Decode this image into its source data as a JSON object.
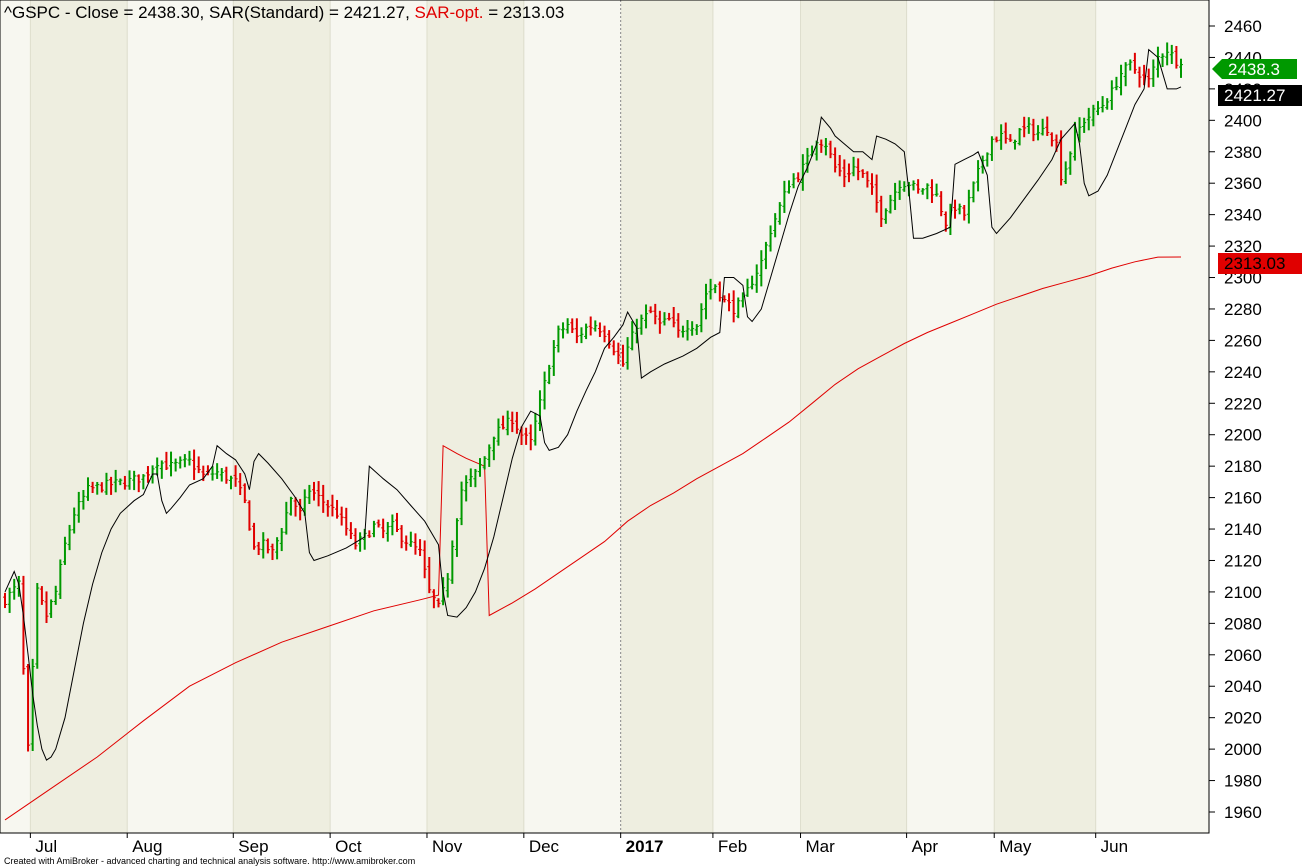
{
  "title": {
    "symbol_part": "^GSPC - Close = 2438.30, SAR(Standard) = 2421.27, ",
    "sar_opt_label": "SAR-opt.",
    "sar_opt_value": " = 2313.03"
  },
  "footer": "Created with AmiBroker - advanced charting and technical analysis software. http://www.amibroker.com",
  "colors": {
    "up": "#009900",
    "down": "#e00000",
    "sar_standard": "#000000",
    "sar_opt": "#e00000",
    "band_light": "#f7f7f0",
    "band_dark": "#eeeee0"
  },
  "chart_data": {
    "type": "line",
    "ylim": [
      1945,
      2475
    ],
    "yticks": [
      1960,
      1980,
      2000,
      2020,
      2040,
      2060,
      2080,
      2100,
      2120,
      2140,
      2160,
      2180,
      2200,
      2220,
      2240,
      2260,
      2280,
      2300,
      2320,
      2340,
      2360,
      2380,
      2400,
      2420,
      2440,
      2460
    ],
    "months": [
      {
        "label": "Jul",
        "start": 6
      },
      {
        "label": "Aug",
        "start": 27
      },
      {
        "label": "Sep",
        "start": 50
      },
      {
        "label": "Oct",
        "start": 71
      },
      {
        "label": "Nov",
        "start": 92
      },
      {
        "label": "Dec",
        "start": 113
      },
      {
        "label": "2017",
        "start": 134,
        "year": true
      },
      {
        "label": "Feb",
        "start": 154
      },
      {
        "label": "Mar",
        "start": 173
      },
      {
        "label": "Apr",
        "start": 196
      },
      {
        "label": "May",
        "start": 215
      },
      {
        "label": "Jun",
        "start": 237
      }
    ],
    "bar_count": 256,
    "close_anchors": [
      [
        0,
        2095
      ],
      [
        3,
        2105
      ],
      [
        4,
        2050
      ],
      [
        5,
        2000
      ],
      [
        6,
        2050
      ],
      [
        7,
        2100
      ],
      [
        9,
        2085
      ],
      [
        11,
        2100
      ],
      [
        13,
        2130
      ],
      [
        15,
        2150
      ],
      [
        18,
        2165
      ],
      [
        22,
        2168
      ],
      [
        26,
        2170
      ],
      [
        30,
        2173
      ],
      [
        33,
        2183
      ],
      [
        36,
        2180
      ],
      [
        40,
        2183
      ],
      [
        43,
        2174
      ],
      [
        46,
        2176
      ],
      [
        50,
        2170
      ],
      [
        52,
        2157
      ],
      [
        54,
        2128
      ],
      [
        56,
        2130
      ],
      [
        58,
        2125
      ],
      [
        60,
        2140
      ],
      [
        62,
        2160
      ],
      [
        64,
        2150
      ],
      [
        66,
        2165
      ],
      [
        68,
        2160
      ],
      [
        70,
        2155
      ],
      [
        72,
        2150
      ],
      [
        74,
        2140
      ],
      [
        76,
        2130
      ],
      [
        78,
        2135
      ],
      [
        80,
        2142
      ],
      [
        82,
        2138
      ],
      [
        84,
        2142
      ],
      [
        86,
        2135
      ],
      [
        88,
        2130
      ],
      [
        90,
        2125
      ],
      [
        92,
        2100
      ],
      [
        94,
        2090
      ],
      [
        96,
        2110
      ],
      [
        97,
        2131
      ],
      [
        99,
        2165
      ],
      [
        102,
        2175
      ],
      [
        104,
        2185
      ],
      [
        106,
        2200
      ],
      [
        108,
        2205
      ],
      [
        110,
        2210
      ],
      [
        112,
        2200
      ],
      [
        114,
        2195
      ],
      [
        116,
        2220
      ],
      [
        118,
        2245
      ],
      [
        120,
        2265
      ],
      [
        122,
        2270
      ],
      [
        124,
        2262
      ],
      [
        126,
        2268
      ],
      [
        128,
        2270
      ],
      [
        130,
        2265
      ],
      [
        132,
        2255
      ],
      [
        134,
        2245
      ],
      [
        135,
        2255
      ],
      [
        137,
        2270
      ],
      [
        140,
        2278
      ],
      [
        142,
        2270
      ],
      [
        144,
        2273
      ],
      [
        146,
        2265
      ],
      [
        148,
        2270
      ],
      [
        150,
        2270
      ],
      [
        152,
        2290
      ],
      [
        154,
        2295
      ],
      [
        156,
        2285
      ],
      [
        158,
        2280
      ],
      [
        160,
        2285
      ],
      [
        162,
        2298
      ],
      [
        164,
        2310
      ],
      [
        166,
        2330
      ],
      [
        168,
        2345
      ],
      [
        170,
        2360
      ],
      [
        172,
        2365
      ],
      [
        174,
        2375
      ],
      [
        176,
        2388
      ],
      [
        178,
        2385
      ],
      [
        180,
        2370
      ],
      [
        182,
        2365
      ],
      [
        184,
        2370
      ],
      [
        186,
        2365
      ],
      [
        188,
        2355
      ],
      [
        190,
        2340
      ],
      [
        192,
        2350
      ],
      [
        194,
        2360
      ],
      [
        196,
        2360
      ],
      [
        198,
        2355
      ],
      [
        200,
        2358
      ],
      [
        202,
        2352
      ],
      [
        204,
        2335
      ],
      [
        206,
        2345
      ],
      [
        208,
        2340
      ],
      [
        210,
        2358
      ],
      [
        212,
        2375
      ],
      [
        214,
        2388
      ],
      [
        216,
        2390
      ],
      [
        218,
        2385
      ],
      [
        220,
        2393
      ],
      [
        222,
        2395
      ],
      [
        224,
        2392
      ],
      [
        226,
        2395
      ],
      [
        228,
        2385
      ],
      [
        229,
        2365
      ],
      [
        230,
        2370
      ],
      [
        232,
        2390
      ],
      [
        234,
        2400
      ],
      [
        236,
        2405
      ],
      [
        238,
        2410
      ],
      [
        240,
        2418
      ],
      [
        242,
        2430
      ],
      [
        244,
        2435
      ],
      [
        246,
        2430
      ],
      [
        248,
        2425
      ],
      [
        250,
        2440
      ],
      [
        252,
        2445
      ],
      [
        254,
        2438
      ],
      [
        255,
        2438.3
      ]
    ],
    "sar_standard": [
      [
        0,
        2100
      ],
      [
        2,
        2113
      ],
      [
        3,
        2105
      ],
      [
        4,
        2085
      ],
      [
        5,
        2060
      ],
      [
        6,
        2035
      ],
      [
        7,
        2015
      ],
      [
        8,
        2000
      ],
      [
        9,
        1993
      ],
      [
        10,
        1995
      ],
      [
        11,
        2000
      ],
      [
        13,
        2020
      ],
      [
        15,
        2050
      ],
      [
        17,
        2080
      ],
      [
        19,
        2105
      ],
      [
        21,
        2125
      ],
      [
        23,
        2140
      ],
      [
        25,
        2150
      ],
      [
        28,
        2158
      ],
      [
        30,
        2162
      ],
      [
        32,
        2175
      ],
      [
        33,
        2175
      ],
      [
        34,
        2158
      ],
      [
        35,
        2150
      ],
      [
        36,
        2153
      ],
      [
        38,
        2160
      ],
      [
        40,
        2168
      ],
      [
        43,
        2172
      ],
      [
        45,
        2180
      ],
      [
        46,
        2193
      ],
      [
        48,
        2188
      ],
      [
        50,
        2184
      ],
      [
        52,
        2175
      ],
      [
        53,
        2165
      ],
      [
        54,
        2183
      ],
      [
        55,
        2188
      ],
      [
        57,
        2182
      ],
      [
        60,
        2172
      ],
      [
        63,
        2160
      ],
      [
        65,
        2150
      ],
      [
        66,
        2125
      ],
      [
        67,
        2120
      ],
      [
        70,
        2123
      ],
      [
        74,
        2128
      ],
      [
        78,
        2135
      ],
      [
        79,
        2180
      ],
      [
        82,
        2172
      ],
      [
        85,
        2165
      ],
      [
        88,
        2155
      ],
      [
        91,
        2145
      ],
      [
        94,
        2130
      ],
      [
        95,
        2100
      ],
      [
        96,
        2085
      ],
      [
        98,
        2084
      ],
      [
        100,
        2090
      ],
      [
        102,
        2100
      ],
      [
        104,
        2115
      ],
      [
        106,
        2135
      ],
      [
        108,
        2160
      ],
      [
        110,
        2185
      ],
      [
        112,
        2205
      ],
      [
        114,
        2215
      ],
      [
        116,
        2212
      ],
      [
        117,
        2195
      ],
      [
        118,
        2190
      ],
      [
        120,
        2192
      ],
      [
        122,
        2200
      ],
      [
        124,
        2215
      ],
      [
        126,
        2228
      ],
      [
        128,
        2240
      ],
      [
        130,
        2255
      ],
      [
        132,
        2262
      ],
      [
        134,
        2270
      ],
      [
        135,
        2278
      ],
      [
        137,
        2268
      ],
      [
        138,
        2236
      ],
      [
        140,
        2240
      ],
      [
        143,
        2245
      ],
      [
        147,
        2250
      ],
      [
        150,
        2255
      ],
      [
        153,
        2262
      ],
      [
        155,
        2265
      ],
      [
        156,
        2300
      ],
      [
        158,
        2300
      ],
      [
        160,
        2295
      ],
      [
        161,
        2275
      ],
      [
        162,
        2272
      ],
      [
        164,
        2280
      ],
      [
        166,
        2300
      ],
      [
        168,
        2320
      ],
      [
        170,
        2340
      ],
      [
        172,
        2358
      ],
      [
        174,
        2370
      ],
      [
        176,
        2385
      ],
      [
        177,
        2402
      ],
      [
        179,
        2395
      ],
      [
        180,
        2390
      ],
      [
        182,
        2385
      ],
      [
        184,
        2380
      ],
      [
        186,
        2380
      ],
      [
        188,
        2375
      ],
      [
        189,
        2390
      ],
      [
        191,
        2388
      ],
      [
        193,
        2385
      ],
      [
        195,
        2380
      ],
      [
        196,
        2355
      ],
      [
        197,
        2325
      ],
      [
        199,
        2325
      ],
      [
        202,
        2328
      ],
      [
        205,
        2332
      ],
      [
        206,
        2372
      ],
      [
        208,
        2375
      ],
      [
        210,
        2378
      ],
      [
        211,
        2380
      ],
      [
        213,
        2365
      ],
      [
        214,
        2332
      ],
      [
        215,
        2328
      ],
      [
        218,
        2338
      ],
      [
        221,
        2350
      ],
      [
        224,
        2362
      ],
      [
        227,
        2375
      ],
      [
        229,
        2388
      ],
      [
        232,
        2398
      ],
      [
        233,
        2385
      ],
      [
        234,
        2360
      ],
      [
        235,
        2352
      ],
      [
        237,
        2355
      ],
      [
        239,
        2365
      ],
      [
        241,
        2380
      ],
      [
        243,
        2395
      ],
      [
        245,
        2410
      ],
      [
        247,
        2420
      ],
      [
        248,
        2445
      ],
      [
        250,
        2440
      ],
      [
        251,
        2430
      ],
      [
        252,
        2420
      ],
      [
        254,
        2420
      ],
      [
        255,
        2421.27
      ]
    ],
    "sar_opt": [
      [
        0,
        1955
      ],
      [
        10,
        1975
      ],
      [
        20,
        1995
      ],
      [
        30,
        2018
      ],
      [
        40,
        2040
      ],
      [
        50,
        2055
      ],
      [
        60,
        2068
      ],
      [
        70,
        2078
      ],
      [
        80,
        2088
      ],
      [
        90,
        2095
      ],
      [
        94,
        2098
      ],
      [
        95,
        2193
      ],
      [
        98,
        2188
      ],
      [
        100,
        2185
      ],
      [
        104,
        2180
      ],
      [
        105,
        2085
      ],
      [
        110,
        2093
      ],
      [
        115,
        2102
      ],
      [
        120,
        2112
      ],
      [
        125,
        2122
      ],
      [
        130,
        2132
      ],
      [
        135,
        2145
      ],
      [
        140,
        2155
      ],
      [
        145,
        2163
      ],
      [
        150,
        2172
      ],
      [
        155,
        2180
      ],
      [
        160,
        2188
      ],
      [
        165,
        2198
      ],
      [
        170,
        2208
      ],
      [
        175,
        2220
      ],
      [
        180,
        2232
      ],
      [
        185,
        2242
      ],
      [
        190,
        2250
      ],
      [
        195,
        2258
      ],
      [
        200,
        2265
      ],
      [
        205,
        2271
      ],
      [
        210,
        2277
      ],
      [
        215,
        2283
      ],
      [
        220,
        2288
      ],
      [
        225,
        2293
      ],
      [
        230,
        2297
      ],
      [
        235,
        2301
      ],
      [
        240,
        2306
      ],
      [
        245,
        2310
      ],
      [
        250,
        2313
      ],
      [
        255,
        2313.03
      ]
    ],
    "last_close_label": "2438.3",
    "sar_standard_label": "2421.27",
    "sar_opt_label": "2313.03"
  }
}
